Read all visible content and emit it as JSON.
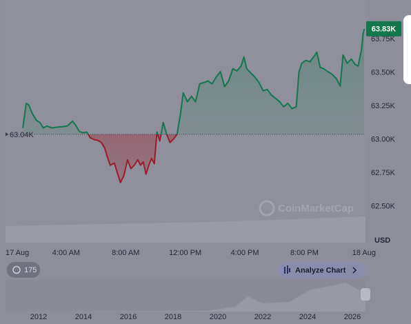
{
  "chart_data": {
    "type": "line",
    "x": [
      1.09,
      1.32,
      1.5,
      1.73,
      2.01,
      2.24,
      2.47,
      2.71,
      3.03,
      3.35,
      3.72,
      4.09,
      4.42,
      4.65,
      4.88,
      5.11,
      5.39,
      5.62,
      5.9,
      6.13,
      6.36,
      6.59,
      6.77,
      6.96,
      7.24,
      7.42,
      7.65,
      7.88,
      8.12,
      8.35,
      8.58,
      8.81,
      8.99,
      9.18,
      9.36,
      9.55,
      9.73,
      9.92,
      10.1,
      10.29,
      10.52,
      10.75,
      10.98,
      11.21,
      11.45,
      11.68,
      11.86,
      12.14,
      12.42,
      12.69,
      12.97,
      13.25,
      13.53,
      13.8,
      14.08,
      14.36,
      14.64,
      14.91,
      15.19,
      15.47,
      15.75,
      15.94,
      16.12,
      16.35,
      16.67,
      16.95,
      17.23,
      17.5,
      17.78,
      18.06,
      18.34,
      18.61,
      18.89,
      19.17,
      19.45,
      19.63,
      19.82,
      20.09,
      20.37,
      20.65,
      20.83,
      21.06,
      21.29,
      21.57,
      21.85,
      22.13,
      22.4,
      22.59,
      22.87,
      23.15,
      23.42,
      23.61,
      23.83,
      23.93,
      24.02
    ],
    "values": [
      63088,
      63273,
      63258,
      63196,
      63144,
      63129,
      63088,
      63103,
      63088,
      63093,
      63098,
      63103,
      63139,
      63108,
      63062,
      63052,
      63057,
      63015,
      63000,
      62995,
      62979,
      62938,
      62871,
      62809,
      62825,
      62758,
      62680,
      62732,
      62850,
      62784,
      62809,
      62850,
      62809,
      62835,
      62742,
      62809,
      62861,
      62820,
      63057,
      62990,
      63129,
      63041,
      62979,
      63005,
      63041,
      63196,
      63351,
      63284,
      63325,
      63284,
      63418,
      63428,
      63439,
      63418,
      63469,
      63510,
      63397,
      63439,
      63531,
      63515,
      63552,
      63619,
      63531,
      63505,
      63469,
      63428,
      63366,
      63376,
      63335,
      63309,
      63284,
      63247,
      63273,
      63232,
      63247,
      63505,
      63572,
      63593,
      63583,
      63624,
      63655,
      63541,
      63531,
      63510,
      63490,
      63459,
      63402,
      63634,
      63572,
      63603,
      63562,
      63552,
      63675,
      63789,
      63830
    ],
    "xlim": [
      -0.07,
      24.1
    ],
    "ylim": [
      62230,
      64045
    ],
    "xticks": [
      {
        "value": 0,
        "label": "17 Aug"
      },
      {
        "value": 4,
        "label": "4:00 AM"
      },
      {
        "value": 8,
        "label": "8:00 AM"
      },
      {
        "value": 12,
        "label": "12:00 PM"
      },
      {
        "value": 16,
        "label": "4:00 PM"
      },
      {
        "value": 20,
        "label": "8:00 PM"
      },
      {
        "value": 24,
        "label": "18 Aug"
      }
    ],
    "yticks": [
      {
        "value": 62500,
        "label": "62.50K"
      },
      {
        "value": 62750,
        "label": "62.75K"
      },
      {
        "value": 63000,
        "label": "63.00K"
      },
      {
        "value": 63250,
        "label": "63.25K"
      },
      {
        "value": 63500,
        "label": "63.50K"
      },
      {
        "value": 63750,
        "label": "63.75K"
      }
    ],
    "grid": false,
    "baseline": {
      "value": 63040,
      "label": "63.04K"
    },
    "current_price": {
      "value": 63830,
      "label": "63.83K"
    },
    "colors": {
      "up": "#13774d",
      "down": "#9c1b2b"
    },
    "currency_label": "USD",
    "watermark": "CoinMarketCap"
  },
  "toolbar": {
    "badge": "175",
    "button": "Analyze Chart"
  },
  "overview": {
    "xticks": [
      "2012",
      "2014",
      "2016",
      "2018",
      "2020",
      "2022",
      "2024",
      "2026"
    ]
  }
}
